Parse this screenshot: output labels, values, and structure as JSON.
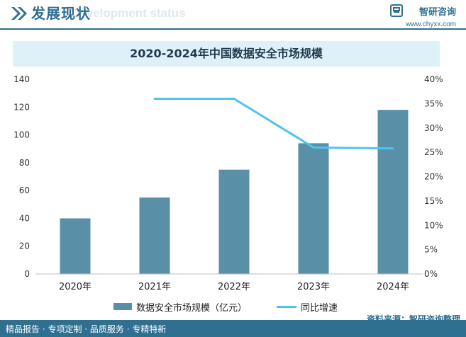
{
  "header": {
    "title": "发展现状",
    "subtitle": "Development status",
    "brand_name": "智研咨询",
    "brand_url": "www.chyxx.com"
  },
  "source": "资料来源：智研咨询整理",
  "footer": "精品报告 · 专项定制 · 品质服务 · 专精特新",
  "colors": {
    "bar": "#5a8fa8",
    "line": "#4fc3f0",
    "accent": "#2f6f8f"
  },
  "chart_data": {
    "type": "bar",
    "title": "2020-2024年中国数据安全市场规模",
    "categories": [
      "2020年",
      "2021年",
      "2022年",
      "2023年",
      "2024年"
    ],
    "series": [
      {
        "name": "数据安全市场规模（亿元）",
        "type": "bar",
        "axis": "left",
        "values": [
          40,
          55,
          75,
          94,
          118
        ]
      },
      {
        "name": "同比增速",
        "type": "line",
        "axis": "right",
        "values": [
          null,
          0.36,
          0.36,
          0.26,
          0.258
        ]
      }
    ],
    "ylim": [
      0,
      140
    ],
    "yticks": [
      "0",
      "20",
      "40",
      "60",
      "80",
      "100",
      "120",
      "140"
    ],
    "y2lim": [
      0,
      0.4
    ],
    "y2ticks": [
      "0%",
      "5%",
      "10%",
      "15%",
      "20%",
      "25%",
      "30%",
      "35%",
      "40%"
    ],
    "grid": false,
    "legend": "bottom"
  }
}
